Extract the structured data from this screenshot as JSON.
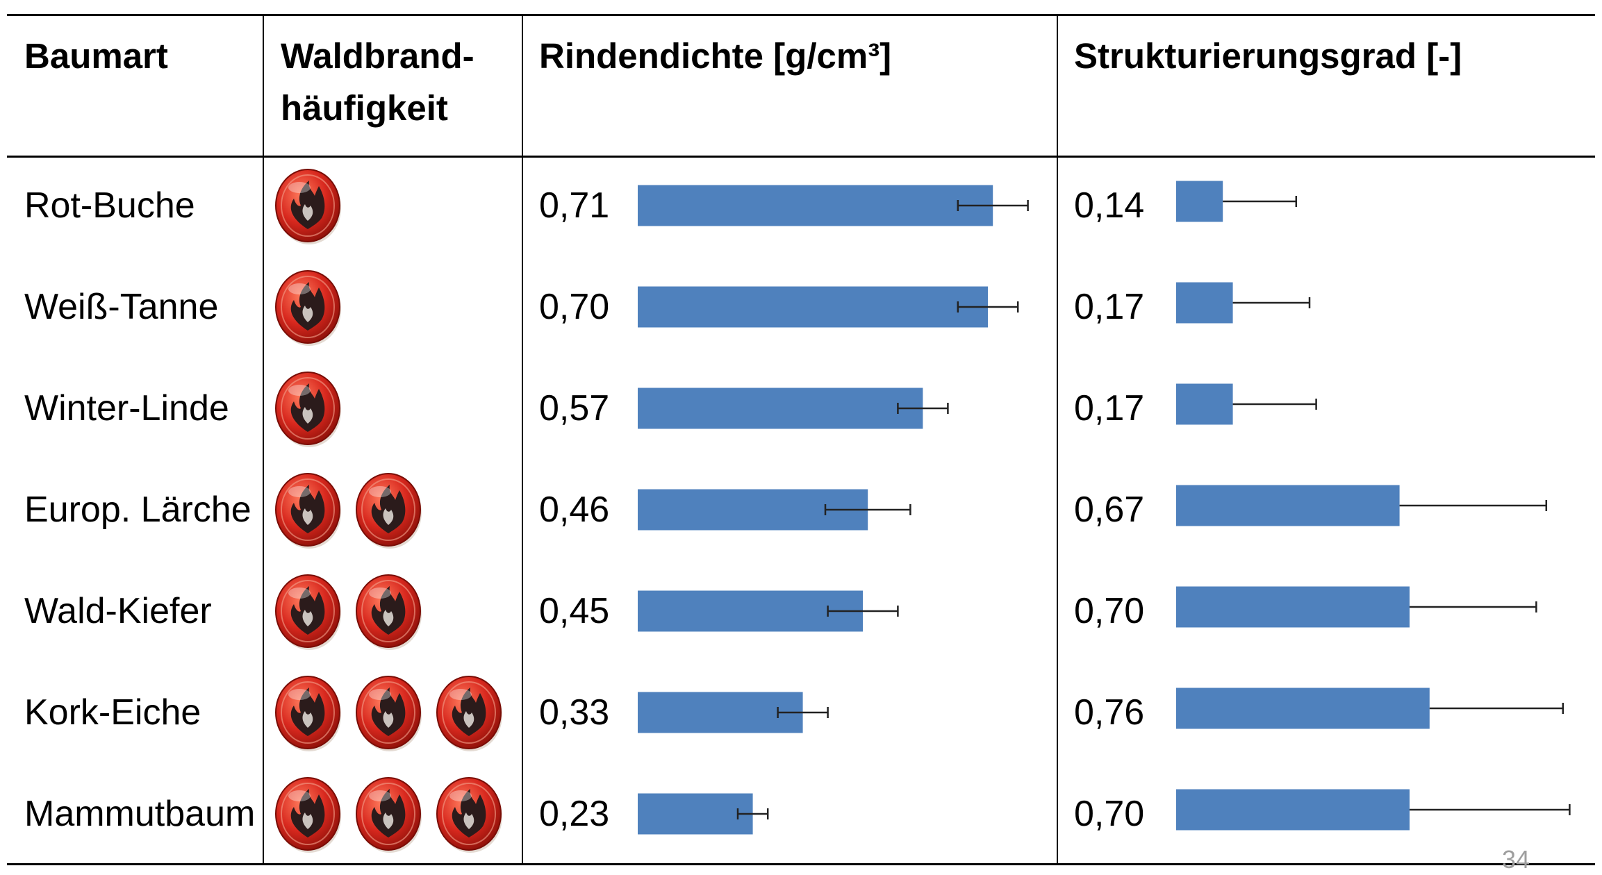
{
  "headers": {
    "species": "Baumart",
    "fire_freq_line1": "Waldbrand-",
    "fire_freq_line2": "häufigkeit",
    "density": "Rindendichte [g/cm³]",
    "structure": "Strukturierungsgrad [-]"
  },
  "rows": [
    {
      "species": "Rot-Buche",
      "fire_icons": 1,
      "density_label": "0,71",
      "structure_label": "0,14"
    },
    {
      "species": "Weiß-Tanne",
      "fire_icons": 1,
      "density_label": "0,70",
      "structure_label": "0,17"
    },
    {
      "species": "Winter-Linde",
      "fire_icons": 1,
      "density_label": "0,57",
      "structure_label": "0,17"
    },
    {
      "species": "Europ. Lärche",
      "fire_icons": 2,
      "density_label": "0,46",
      "structure_label": "0,67"
    },
    {
      "species": "Wald-Kiefer",
      "fire_icons": 2,
      "density_label": "0,45",
      "structure_label": "0,70"
    },
    {
      "species": "Kork-Eiche",
      "fire_icons": 3,
      "density_label": "0,33",
      "structure_label": "0,76"
    },
    {
      "species": "Mammutbaum",
      "fire_icons": 3,
      "density_label": "0,23",
      "structure_label": "0,70"
    }
  ],
  "icon": "fire-icon",
  "colors": {
    "bar": "#4f81bd",
    "icon_red": "#d8281e",
    "icon_dark": "#2b1b1b"
  },
  "page_number": "34",
  "chart_data": [
    {
      "type": "bar",
      "orientation": "horizontal",
      "categories": [
        "Rot-Buche",
        "Weiß-Tanne",
        "Winter-Linde",
        "Europ. Lärche",
        "Wald-Kiefer",
        "Kork-Eiche",
        "Mammutbaum"
      ],
      "values": [
        0.71,
        0.7,
        0.57,
        0.46,
        0.45,
        0.33,
        0.23
      ],
      "error": [
        0.07,
        0.06,
        0.05,
        0.085,
        0.07,
        0.05,
        0.03
      ],
      "title": "Rindendichte [g/cm³]",
      "xlim": [
        0,
        0.8
      ]
    },
    {
      "type": "bar",
      "orientation": "horizontal",
      "categories": [
        "Rot-Buche",
        "Weiß-Tanne",
        "Winter-Linde",
        "Europ. Lärche",
        "Wald-Kiefer",
        "Kork-Eiche",
        "Mammutbaum"
      ],
      "values": [
        0.14,
        0.17,
        0.17,
        0.67,
        0.7,
        0.76,
        0.7
      ],
      "error": [
        0.22,
        0.23,
        0.25,
        0.44,
        0.38,
        0.4,
        0.48
      ],
      "title": "Strukturierungsgrad [-]",
      "xlim": [
        0,
        1.25
      ]
    }
  ]
}
